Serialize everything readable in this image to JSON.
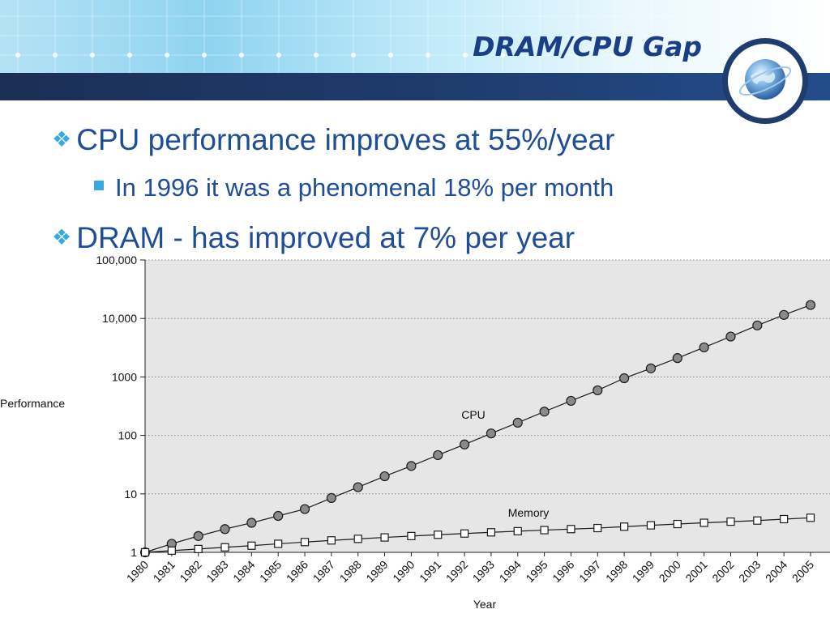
{
  "slide": {
    "title": "DRAM/CPU Gap",
    "bullets": [
      {
        "text": "CPU performance improves at 55%/year",
        "level": 1,
        "marker": "diamond"
      },
      {
        "text": "In 1996 it was a phenomenal 18% per month",
        "level": 2,
        "marker": "square"
      },
      {
        "text": "DRAM - has improved at 7% per year",
        "level": 1,
        "marker": "diamond"
      }
    ],
    "logo_icon": "globe-icon",
    "colors": {
      "title": "#1b3f86",
      "bullet_text": "#1f4e96",
      "bullet_marker": "#39a9e0",
      "header_bar": "#1f3c6e",
      "plot_background": "#e6e6e6",
      "cpu_marker": "#8a8a8a",
      "memory_marker": "#ffffff"
    }
  },
  "chart_data": {
    "type": "line",
    "title": "",
    "xlabel": "Year",
    "ylabel": "Performance",
    "y_scale": "log",
    "ylim": [
      1,
      100000
    ],
    "y_ticks": [
      1,
      10,
      100,
      1000,
      10000,
      100000
    ],
    "y_tick_labels": [
      "1",
      "10",
      "100",
      "1000",
      "10,000",
      "100,000"
    ],
    "grid": true,
    "x": [
      "1980",
      "1981",
      "1982",
      "1983",
      "1984",
      "1985",
      "1986",
      "1987",
      "1988",
      "1989",
      "1990",
      "1991",
      "1992",
      "1993",
      "1994",
      "1995",
      "1996",
      "1997",
      "1998",
      "1999",
      "2000",
      "2001",
      "2002",
      "2003",
      "2004",
      "2005"
    ],
    "series": [
      {
        "name": "CPU",
        "marker": "circle",
        "values": [
          1,
          1.4,
          1.9,
          2.5,
          3.2,
          4.2,
          5.5,
          8.5,
          13,
          20,
          30,
          46,
          70,
          108,
          165,
          255,
          390,
          590,
          950,
          1400,
          2100,
          3200,
          4900,
          7600,
          11500,
          17000
        ]
      },
      {
        "name": "Memory",
        "marker": "square",
        "values": [
          1,
          1.07,
          1.14,
          1.22,
          1.3,
          1.4,
          1.5,
          1.6,
          1.7,
          1.8,
          1.9,
          2.0,
          2.1,
          2.2,
          2.3,
          2.4,
          2.5,
          2.6,
          2.75,
          2.9,
          3.05,
          3.2,
          3.35,
          3.5,
          3.7,
          3.9
        ]
      }
    ]
  }
}
